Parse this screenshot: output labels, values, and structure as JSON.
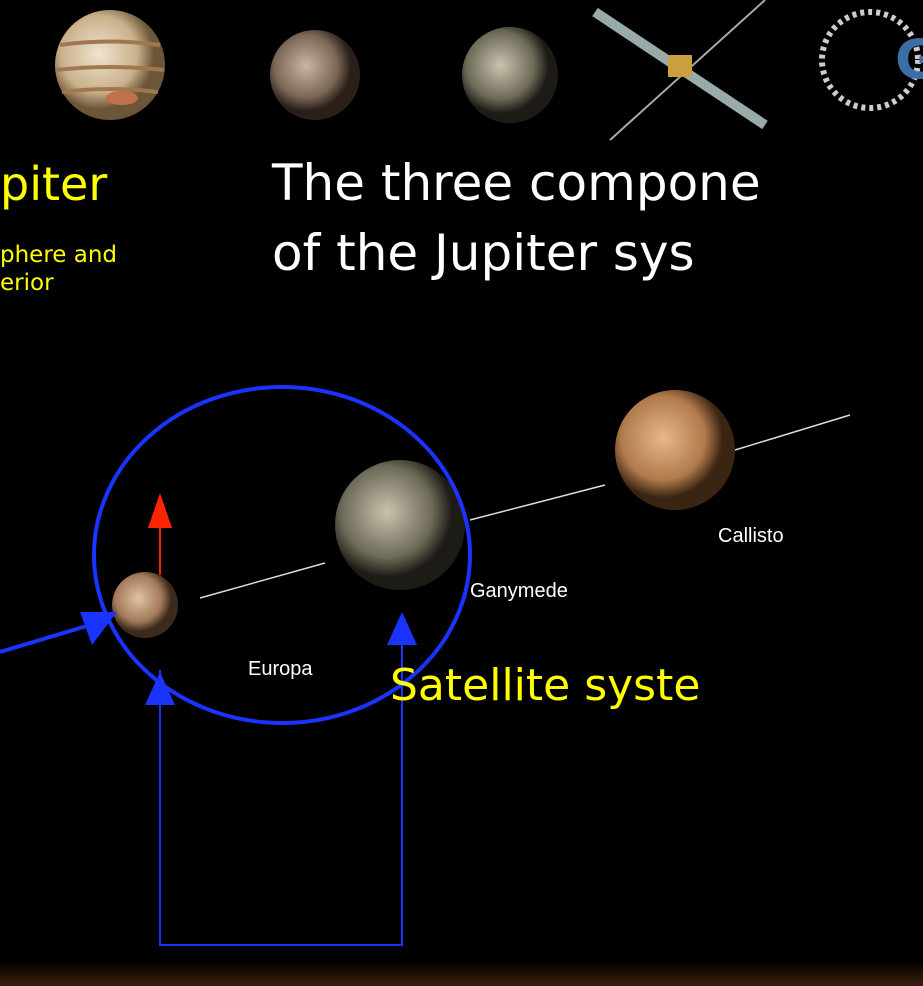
{
  "header": {
    "jupiter_title": "piter",
    "jupiter_sub_1": "phere and",
    "jupiter_sub_2": "erior",
    "title_line_1": "The three compone",
    "title_line_2": "of the Jupiter sys",
    "logo_letter": "G"
  },
  "diagram": {
    "labels": {
      "callisto": "Callisto",
      "ganymede": "Ganymede",
      "europa": "Europa"
    },
    "caption": "Satellite syste"
  }
}
